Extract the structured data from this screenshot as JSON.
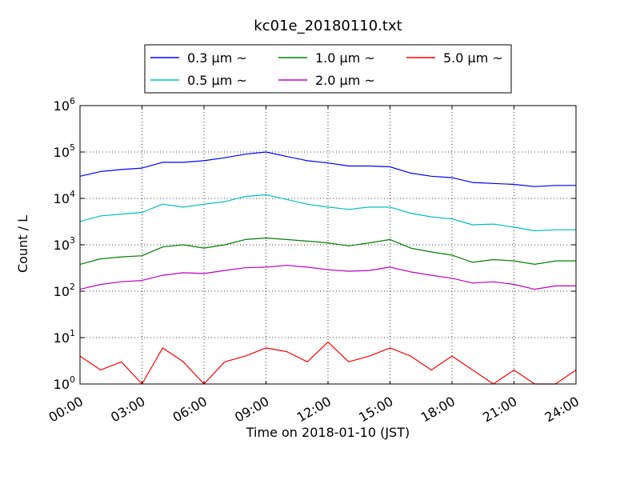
{
  "chart_data": {
    "type": "line",
    "title": "kc01e_20180110.txt",
    "xlabel": "Time on 2018-01-10 (JST)",
    "ylabel": "Count / L",
    "yscale": "log",
    "ylim": [
      1,
      1000000
    ],
    "xlim": [
      "00:00",
      "24:00"
    ],
    "xticks": [
      "00:00",
      "03:00",
      "06:00",
      "09:00",
      "12:00",
      "15:00",
      "18:00",
      "21:00",
      "24:00"
    ],
    "yticks": [
      {
        "base": "10",
        "exp": "0"
      },
      {
        "base": "10",
        "exp": "1"
      },
      {
        "base": "10",
        "exp": "2"
      },
      {
        "base": "10",
        "exp": "3"
      },
      {
        "base": "10",
        "exp": "4"
      },
      {
        "base": "10",
        "exp": "5"
      },
      {
        "base": "10",
        "exp": "6"
      }
    ],
    "grid": true,
    "legend_position": "top",
    "x": [
      "00:00",
      "01:00",
      "02:00",
      "03:00",
      "04:00",
      "05:00",
      "06:00",
      "07:00",
      "08:00",
      "09:00",
      "10:00",
      "11:00",
      "12:00",
      "13:00",
      "14:00",
      "15:00",
      "16:00",
      "17:00",
      "18:00",
      "19:00",
      "20:00",
      "21:00",
      "22:00",
      "23:00",
      "24:00"
    ],
    "series": [
      {
        "name": "0.3 μm ~",
        "color": "#0000ff",
        "values": [
          30000,
          38000,
          42000,
          45000,
          60000,
          60000,
          65000,
          75000,
          90000,
          100000,
          80000,
          65000,
          58000,
          50000,
          50000,
          48000,
          35000,
          30000,
          28000,
          22000,
          21000,
          20000,
          18000,
          19000,
          19000
        ]
      },
      {
        "name": "0.5 μm ~",
        "color": "#00bfbf",
        "values": [
          3200,
          4200,
          4600,
          5000,
          7500,
          6500,
          7500,
          8500,
          11000,
          12000,
          9500,
          7500,
          6500,
          5800,
          6500,
          6500,
          4800,
          4000,
          3600,
          2700,
          2800,
          2400,
          2000,
          2100,
          2100
        ]
      },
      {
        "name": "1.0 μm ~",
        "color": "#008000",
        "values": [
          380,
          500,
          550,
          580,
          900,
          1000,
          850,
          1000,
          1300,
          1400,
          1300,
          1200,
          1100,
          950,
          1100,
          1300,
          850,
          700,
          600,
          420,
          480,
          450,
          380,
          450,
          450
        ]
      },
      {
        "name": "2.0 μm ~",
        "color": "#bf00bf",
        "values": [
          110,
          140,
          160,
          170,
          220,
          250,
          240,
          280,
          320,
          330,
          360,
          330,
          290,
          270,
          280,
          330,
          260,
          220,
          190,
          150,
          160,
          140,
          110,
          130,
          130
        ]
      },
      {
        "name": "5.0 μm ~",
        "color": "#ff0000",
        "values": [
          4,
          2,
          3,
          1,
          6,
          3,
          1,
          3,
          4,
          6,
          5,
          3,
          8,
          3,
          4,
          6,
          4,
          2,
          4,
          2,
          1,
          2,
          1,
          1,
          2
        ]
      }
    ]
  }
}
